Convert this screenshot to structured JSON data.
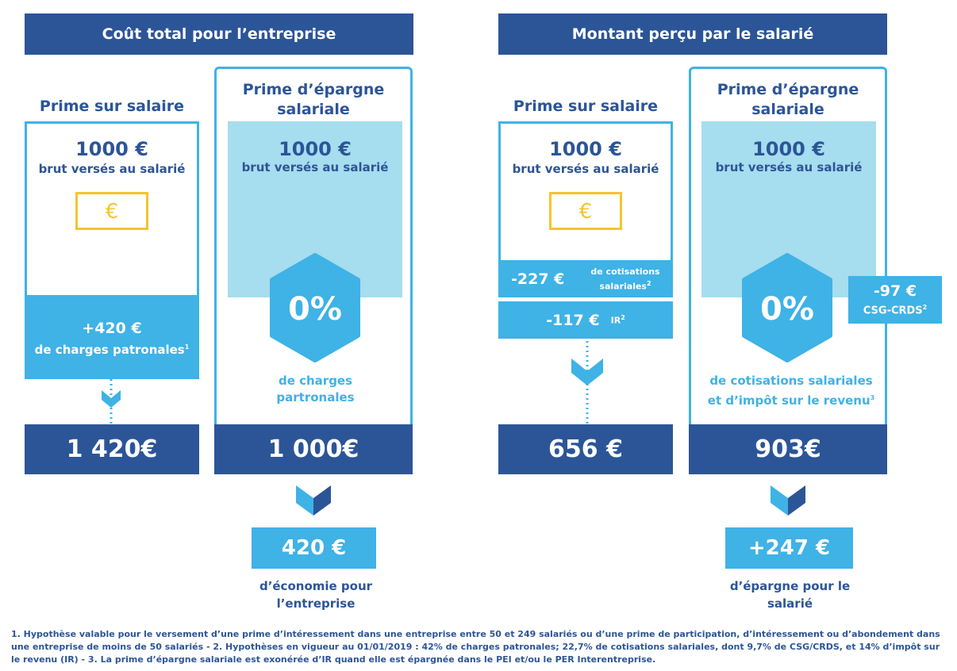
{
  "headers": {
    "left": "Coût total pour l’entreprise",
    "right": "Montant perçu par le salarié"
  },
  "col1": {
    "title": "Prime sur salaire",
    "amount": "1000 €",
    "amount_sub": "brut versés au salarié",
    "charge_amount": "+420 €",
    "charge_label": "de charges patronales",
    "charge_sup": "1",
    "total": "1 420€"
  },
  "col2": {
    "title": "Prime d’épargne salariale",
    "amount": "1000 €",
    "amount_sub": "brut versés au salarié",
    "hex_value": "0%",
    "hex_label": "de charges partronales",
    "total": "1 000€",
    "result_amount": "420 €",
    "result_label": "d’économie pour l’entreprise"
  },
  "col3": {
    "title": "Prime sur salaire",
    "amount": "1000 €",
    "amount_sub": "brut versés au salarié",
    "deduct1_amount": "-227 €",
    "deduct1_label": "de cotisations salariales",
    "deduct1_sup": "2",
    "deduct2_amount": "-117 €",
    "deduct2_label": "IR",
    "deduct2_sup": "2",
    "total": "656 €"
  },
  "col4": {
    "title": "Prime d’épargne salariale",
    "amount": "1000 €",
    "amount_sub": "brut versés au salarié",
    "hex_value": "0%",
    "csg_amount": "-97 €",
    "csg_label": "CSG-CRDS",
    "csg_sup": "2",
    "hex_label": "de cotisations salariales et d’impôt sur le revenu",
    "hex_sup": "3",
    "total": "903€",
    "result_amount": "+247 €",
    "result_label": "d’épargne pour le salarié"
  },
  "footnote": "1. Hypothèse valable pour le versement d’une prime d’intéressement dans une entreprise entre 50 et 249 salariés ou d’une prime de participation, d’intéressement ou d’abondement dans une entreprise de moins de 50 salariés - 2. Hypothèses en vigueur au 01/01/2019 : 42% de charges patronales; 22,7% de cotisations salariales, dont 9,7% de CSG/CRDS, et 14% d’impôt sur le revenu (IR) - 3. La prime d’épargne salariale est exonérée d’IR quand elle est épargnée dans le PEI et/ou le PER Interentreprise.",
  "colors": {
    "navy": "#2c5597",
    "cyan": "#3fb2e6",
    "light_blue": "#a6ddef",
    "euro_yellow": "#f4c430"
  },
  "icons": [
    "euro-note-icon",
    "chevron-down-icon",
    "hexagon-icon"
  ]
}
